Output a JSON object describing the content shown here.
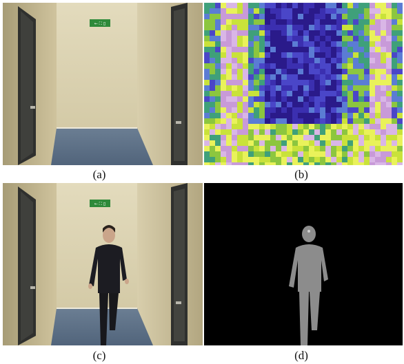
{
  "figure": {
    "panels": [
      {
        "id": "a",
        "caption": "(a)"
      },
      {
        "id": "b",
        "caption": "(b)"
      },
      {
        "id": "c",
        "caption": "(c)"
      },
      {
        "id": "d",
        "caption": "(d)"
      }
    ],
    "colors": {
      "wall": "#cfc49c",
      "door": "#3d3d3a",
      "carpet": "#5b6f86",
      "silhouette": "#8a8a8a",
      "mask_background": "#000000"
    }
  }
}
